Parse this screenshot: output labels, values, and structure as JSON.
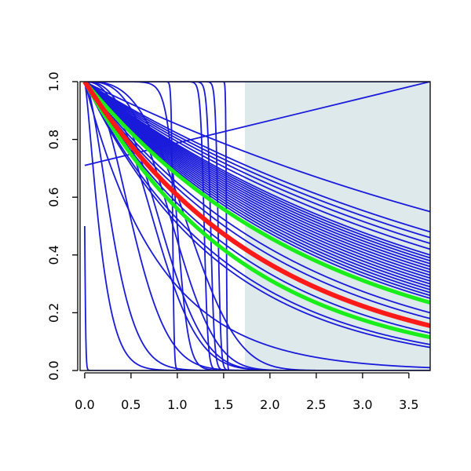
{
  "chart_data": {
    "type": "line",
    "title": "",
    "xlabel": "",
    "ylabel": "",
    "xlim": [
      -0.05,
      3.73
    ],
    "ylim": [
      0.0,
      1.0
    ],
    "grid": false,
    "x_ticks": [
      "0.0",
      "0.5",
      "1.0",
      "1.5",
      "2.0",
      "2.5",
      "3.0",
      "3.5"
    ],
    "y_ticks": [
      "0.0",
      "0.2",
      "0.4",
      "0.6",
      "0.8",
      "1.0"
    ],
    "shaded_region": {
      "x_from": 1.73,
      "x_to": 3.73,
      "color": "#dde9ea"
    },
    "colors": {
      "blue": "#1a1adb",
      "red": "#ff1a1a",
      "green": "#1aee1a"
    },
    "series": [
      {
        "kind": "line",
        "x0": 0,
        "y0": 0.71,
        "x1": 3.73,
        "y1": 1.0,
        "color": "blue"
      },
      {
        "kind": "line",
        "x0": 0,
        "y0": 1.0,
        "x1": 3.73,
        "y1": 1.0,
        "color": "blue"
      },
      {
        "kind": "exp",
        "end": 0.55,
        "color": "blue"
      },
      {
        "kind": "exp",
        "end": 0.48,
        "color": "blue"
      },
      {
        "kind": "exp",
        "end": 0.46,
        "color": "blue"
      },
      {
        "kind": "exp",
        "end": 0.44,
        "color": "blue"
      },
      {
        "kind": "exp",
        "end": 0.42,
        "color": "blue"
      },
      {
        "kind": "exp",
        "end": 0.4,
        "color": "blue"
      },
      {
        "kind": "exp",
        "end": 0.39,
        "color": "blue"
      },
      {
        "kind": "exp",
        "end": 0.38,
        "color": "blue"
      },
      {
        "kind": "exp",
        "end": 0.37,
        "color": "blue"
      },
      {
        "kind": "exp",
        "end": 0.36,
        "color": "blue"
      },
      {
        "kind": "exp",
        "end": 0.35,
        "color": "blue"
      },
      {
        "kind": "exp",
        "end": 0.34,
        "color": "blue"
      },
      {
        "kind": "exp",
        "end": 0.33,
        "color": "blue"
      },
      {
        "kind": "exp",
        "end": 0.32,
        "color": "blue"
      },
      {
        "kind": "exp",
        "end": 0.31,
        "color": "blue"
      },
      {
        "kind": "exp",
        "end": 0.3,
        "color": "blue"
      },
      {
        "kind": "exp",
        "end": 0.29,
        "color": "blue"
      },
      {
        "kind": "exp",
        "end": 0.28,
        "color": "blue"
      },
      {
        "kind": "exp",
        "end": 0.27,
        "color": "blue"
      },
      {
        "kind": "exp",
        "end": 0.26,
        "color": "blue"
      },
      {
        "kind": "exp",
        "end": 0.25,
        "color": "blue"
      },
      {
        "kind": "exp",
        "end": 0.2,
        "color": "blue"
      },
      {
        "kind": "exp",
        "end": 0.18,
        "color": "blue"
      },
      {
        "kind": "exp",
        "end": 0.13,
        "color": "blue"
      },
      {
        "kind": "exp",
        "end": 0.09,
        "color": "blue"
      },
      {
        "kind": "exp",
        "end": 0.08,
        "color": "blue"
      },
      {
        "kind": "exp",
        "end": 0.01,
        "color": "blue"
      },
      {
        "kind": "power",
        "a": 8.0,
        "p": 1.3,
        "color": "blue"
      },
      {
        "kind": "power",
        "a": 5.0,
        "p": 1.6,
        "color": "blue"
      },
      {
        "kind": "power",
        "a": 2.6,
        "p": 2.0,
        "color": "blue"
      },
      {
        "kind": "power",
        "a": 1.35,
        "p": 2.4,
        "color": "blue"
      },
      {
        "kind": "power",
        "a": 1.15,
        "p": 2.6,
        "color": "blue"
      },
      {
        "kind": "power",
        "a": 0.8,
        "p": 3.0,
        "color": "blue"
      },
      {
        "kind": "power",
        "a": 0.5,
        "p": 3.0,
        "color": "blue"
      },
      {
        "kind": "step",
        "c": 0.0,
        "s": 0.006,
        "color": "blue"
      },
      {
        "kind": "step",
        "c": 0.95,
        "s": 0.008,
        "color": "blue"
      },
      {
        "kind": "step",
        "c": 1.0,
        "s": 0.06,
        "color": "blue"
      },
      {
        "kind": "step",
        "c": 1.29,
        "s": 0.02,
        "color": "blue"
      },
      {
        "kind": "step",
        "c": 1.36,
        "s": 0.02,
        "color": "blue"
      },
      {
        "kind": "step",
        "c": 1.44,
        "s": 0.015,
        "color": "blue"
      },
      {
        "kind": "step",
        "c": 1.53,
        "s": 0.004,
        "color": "blue"
      },
      {
        "kind": "exp",
        "end": 0.235,
        "color": "green",
        "width": 5
      },
      {
        "kind": "exp",
        "end": 0.115,
        "color": "green",
        "width": 5
      },
      {
        "kind": "exp",
        "end": 0.155,
        "color": "red",
        "width": 6
      }
    ]
  }
}
